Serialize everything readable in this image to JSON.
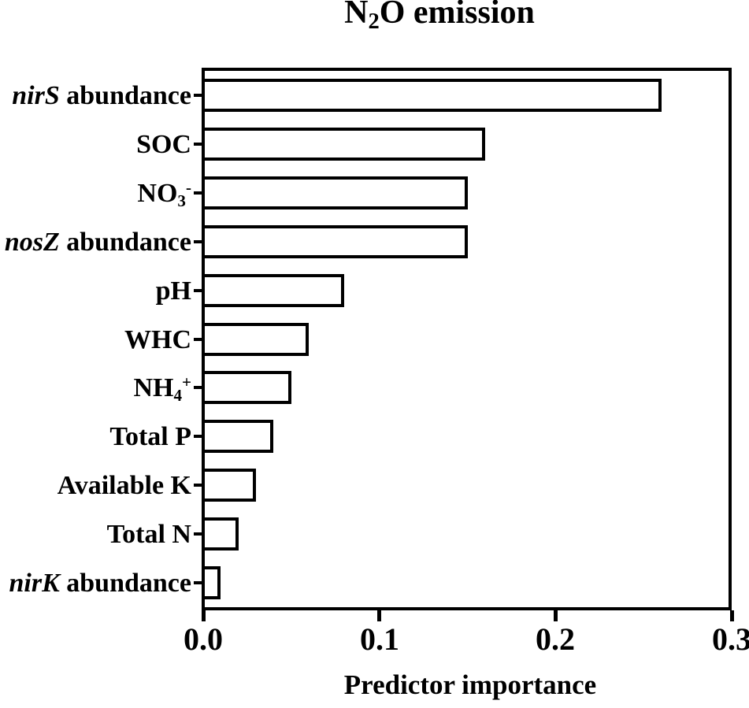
{
  "chart_data": {
    "type": "bar",
    "orientation": "horizontal",
    "title": "N₂O emission",
    "title_segments": [
      {
        "t": "N"
      },
      {
        "t": "2",
        "s": "sub"
      },
      {
        "t": "O emission"
      }
    ],
    "xlabel": "Predictor importance",
    "ylabel": "",
    "xlim": [
      0.0,
      0.3
    ],
    "xticks": [
      0.0,
      0.1,
      0.2,
      0.3
    ],
    "xtick_labels": [
      "0.0",
      "0.1",
      "0.2",
      "0.3"
    ],
    "grid": false,
    "legend": null,
    "categories": [
      "nirS abundance",
      "SOC",
      "NO₃⁻",
      "nosZ abundance",
      "pH",
      "WHC",
      "NH₄⁺",
      "Total P",
      "Available K",
      "Total N",
      "nirK abundance"
    ],
    "category_segments": [
      [
        {
          "t": "nirS",
          "s": "italic"
        },
        {
          "t": " abundance"
        }
      ],
      [
        {
          "t": "SOC"
        }
      ],
      [
        {
          "t": "NO"
        },
        {
          "t": "3",
          "s": "sub"
        },
        {
          "t": "-",
          "s": "sup"
        }
      ],
      [
        {
          "t": "nosZ",
          "s": "italic"
        },
        {
          "t": " abundance"
        }
      ],
      [
        {
          "t": "pH"
        }
      ],
      [
        {
          "t": "WHC"
        }
      ],
      [
        {
          "t": "NH"
        },
        {
          "t": "4",
          "s": "sub"
        },
        {
          "t": "+",
          "s": "sup"
        }
      ],
      [
        {
          "t": "Total P"
        }
      ],
      [
        {
          "t": "Available K"
        }
      ],
      [
        {
          "t": "Total N"
        }
      ],
      [
        {
          "t": "nirK",
          "s": "italic"
        },
        {
          "t": " abundance"
        }
      ]
    ],
    "values": [
      0.26,
      0.16,
      0.15,
      0.15,
      0.08,
      0.06,
      0.05,
      0.04,
      0.03,
      0.02,
      0.01
    ],
    "colors": {
      "bar_fill": "#ffffff",
      "bar_border": "#000000",
      "axis": "#000000",
      "text": "#000000",
      "background": "#ffffff"
    }
  }
}
